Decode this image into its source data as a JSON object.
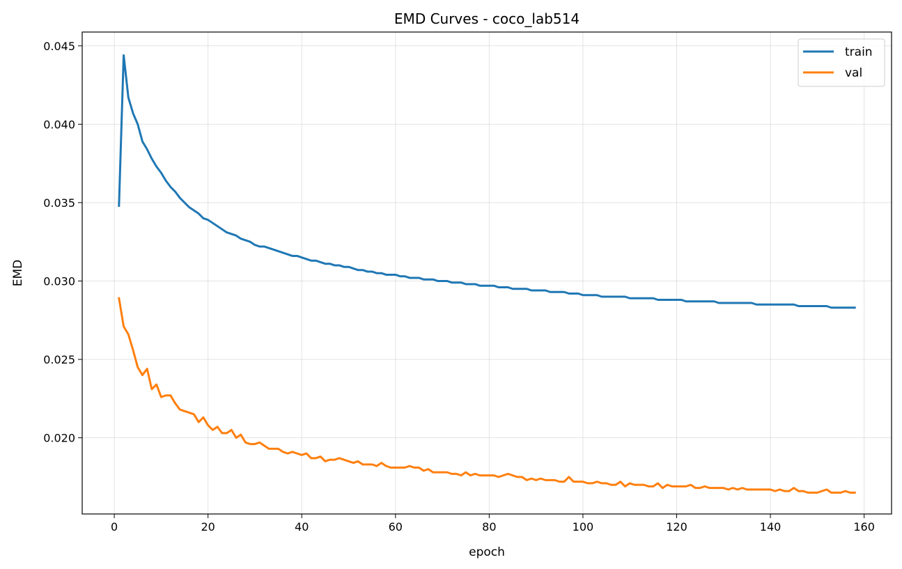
{
  "chart_data": {
    "type": "line",
    "title": "EMD Curves - coco_lab514",
    "xlabel": "epoch",
    "ylabel": "EMD",
    "xlim": [
      -6.85,
      165.85
    ],
    "ylim": [
      0.01514,
      0.04588
    ],
    "xticks": [
      0,
      20,
      40,
      60,
      80,
      100,
      120,
      140,
      160
    ],
    "xtick_labels": [
      "0",
      "20",
      "40",
      "60",
      "80",
      "100",
      "120",
      "140",
      "160"
    ],
    "yticks": [
      0.02,
      0.025,
      0.03,
      0.035,
      0.04,
      0.045
    ],
    "ytick_labels": [
      "0.020",
      "0.025",
      "0.030",
      "0.035",
      "0.040",
      "0.045"
    ],
    "grid": true,
    "legend_position": "top-right",
    "series": [
      {
        "name": "train",
        "color": "#1f77b4",
        "x": [
          1,
          2,
          3,
          4,
          5,
          6,
          7,
          8,
          9,
          10,
          11,
          12,
          13,
          14,
          15,
          16,
          17,
          18,
          19,
          20,
          21,
          22,
          23,
          24,
          25,
          26,
          27,
          28,
          29,
          30,
          31,
          32,
          33,
          34,
          35,
          36,
          37,
          38,
          39,
          40,
          41,
          42,
          43,
          44,
          45,
          46,
          47,
          48,
          49,
          50,
          51,
          52,
          53,
          54,
          55,
          56,
          57,
          58,
          59,
          60,
          61,
          62,
          63,
          64,
          65,
          66,
          67,
          68,
          69,
          70,
          71,
          72,
          73,
          74,
          75,
          76,
          77,
          78,
          79,
          80,
          81,
          82,
          83,
          84,
          85,
          86,
          87,
          88,
          89,
          90,
          91,
          92,
          93,
          94,
          95,
          96,
          97,
          98,
          99,
          100,
          101,
          102,
          103,
          104,
          105,
          106,
          107,
          108,
          109,
          110,
          111,
          112,
          113,
          114,
          115,
          116,
          117,
          118,
          119,
          120,
          121,
          122,
          123,
          124,
          125,
          126,
          127,
          128,
          129,
          130,
          131,
          132,
          133,
          134,
          135,
          136,
          137,
          138,
          139,
          140,
          141,
          142,
          143,
          144,
          145,
          146,
          147,
          148,
          149,
          150,
          151,
          152,
          153,
          154,
          155,
          156,
          157,
          158
        ],
        "values": [
          0.0348,
          0.0444,
          0.0417,
          0.0407,
          0.04,
          0.0389,
          0.0384,
          0.0378,
          0.0373,
          0.0369,
          0.0364,
          0.036,
          0.0357,
          0.0353,
          0.035,
          0.0347,
          0.0345,
          0.0343,
          0.034,
          0.0339,
          0.0337,
          0.0335,
          0.0333,
          0.0331,
          0.033,
          0.0329,
          0.0327,
          0.0326,
          0.0325,
          0.0323,
          0.0322,
          0.0322,
          0.0321,
          0.032,
          0.0319,
          0.0318,
          0.0317,
          0.0316,
          0.0316,
          0.0315,
          0.0314,
          0.0313,
          0.0313,
          0.0312,
          0.0311,
          0.0311,
          0.031,
          0.031,
          0.0309,
          0.0309,
          0.0308,
          0.0307,
          0.0307,
          0.0306,
          0.0306,
          0.0305,
          0.0305,
          0.0304,
          0.0304,
          0.0304,
          0.0303,
          0.0303,
          0.0302,
          0.0302,
          0.0302,
          0.0301,
          0.0301,
          0.0301,
          0.03,
          0.03,
          0.03,
          0.0299,
          0.0299,
          0.0299,
          0.0298,
          0.0298,
          0.0298,
          0.0297,
          0.0297,
          0.0297,
          0.0297,
          0.0296,
          0.0296,
          0.0296,
          0.0295,
          0.0295,
          0.0295,
          0.0295,
          0.0294,
          0.0294,
          0.0294,
          0.0294,
          0.0293,
          0.0293,
          0.0293,
          0.0293,
          0.0292,
          0.0292,
          0.0292,
          0.0291,
          0.0291,
          0.0291,
          0.0291,
          0.029,
          0.029,
          0.029,
          0.029,
          0.029,
          0.029,
          0.0289,
          0.0289,
          0.0289,
          0.0289,
          0.0289,
          0.0289,
          0.0288,
          0.0288,
          0.0288,
          0.0288,
          0.0288,
          0.0288,
          0.0287,
          0.0287,
          0.0287,
          0.0287,
          0.0287,
          0.0287,
          0.0287,
          0.0286,
          0.0286,
          0.0286,
          0.0286,
          0.0286,
          0.0286,
          0.0286,
          0.0286,
          0.0285,
          0.0285,
          0.0285,
          0.0285,
          0.0285,
          0.0285,
          0.0285,
          0.0285,
          0.0285,
          0.0284,
          0.0284,
          0.0284,
          0.0284,
          0.0284,
          0.0284,
          0.0284,
          0.0283,
          0.0283,
          0.0283,
          0.0283,
          0.0283,
          0.0283
        ]
      },
      {
        "name": "val",
        "color": "#ff7f0e",
        "x": [
          1,
          2,
          3,
          4,
          5,
          6,
          7,
          8,
          9,
          10,
          11,
          12,
          13,
          14,
          15,
          16,
          17,
          18,
          19,
          20,
          21,
          22,
          23,
          24,
          25,
          26,
          27,
          28,
          29,
          30,
          31,
          32,
          33,
          34,
          35,
          36,
          37,
          38,
          39,
          40,
          41,
          42,
          43,
          44,
          45,
          46,
          47,
          48,
          49,
          50,
          51,
          52,
          53,
          54,
          55,
          56,
          57,
          58,
          59,
          60,
          61,
          62,
          63,
          64,
          65,
          66,
          67,
          68,
          69,
          70,
          71,
          72,
          73,
          74,
          75,
          76,
          77,
          78,
          79,
          80,
          81,
          82,
          83,
          84,
          85,
          86,
          87,
          88,
          89,
          90,
          91,
          92,
          93,
          94,
          95,
          96,
          97,
          98,
          99,
          100,
          101,
          102,
          103,
          104,
          105,
          106,
          107,
          108,
          109,
          110,
          111,
          112,
          113,
          114,
          115,
          116,
          117,
          118,
          119,
          120,
          121,
          122,
          123,
          124,
          125,
          126,
          127,
          128,
          129,
          130,
          131,
          132,
          133,
          134,
          135,
          136,
          137,
          138,
          139,
          140,
          141,
          142,
          143,
          144,
          145,
          146,
          147,
          148,
          149,
          150,
          151,
          152,
          153,
          154,
          155,
          156,
          157,
          158
        ],
        "values": [
          0.0289,
          0.0271,
          0.0266,
          0.0256,
          0.0245,
          0.024,
          0.0244,
          0.0231,
          0.0234,
          0.0226,
          0.0227,
          0.0227,
          0.0222,
          0.0218,
          0.0217,
          0.0216,
          0.0215,
          0.021,
          0.0213,
          0.0208,
          0.0205,
          0.0207,
          0.0203,
          0.0203,
          0.0205,
          0.02,
          0.0202,
          0.0197,
          0.0196,
          0.0196,
          0.0197,
          0.0195,
          0.0193,
          0.0193,
          0.0193,
          0.0191,
          0.019,
          0.0191,
          0.019,
          0.0189,
          0.019,
          0.0187,
          0.0187,
          0.0188,
          0.0185,
          0.0186,
          0.0186,
          0.0187,
          0.0186,
          0.0185,
          0.0184,
          0.0185,
          0.0183,
          0.0183,
          0.0183,
          0.0182,
          0.0184,
          0.0182,
          0.0181,
          0.0181,
          0.0181,
          0.0181,
          0.0182,
          0.0181,
          0.0181,
          0.0179,
          0.018,
          0.0178,
          0.0178,
          0.0178,
          0.0178,
          0.0177,
          0.0177,
          0.0176,
          0.0178,
          0.0176,
          0.0177,
          0.0176,
          0.0176,
          0.0176,
          0.0176,
          0.0175,
          0.0176,
          0.0177,
          0.0176,
          0.0175,
          0.0175,
          0.0173,
          0.0174,
          0.0173,
          0.0174,
          0.0173,
          0.0173,
          0.0173,
          0.0172,
          0.0172,
          0.0175,
          0.0172,
          0.0172,
          0.0172,
          0.0171,
          0.0171,
          0.0172,
          0.0171,
          0.0171,
          0.017,
          0.017,
          0.0172,
          0.0169,
          0.0171,
          0.017,
          0.017,
          0.017,
          0.0169,
          0.0169,
          0.0171,
          0.0168,
          0.017,
          0.0169,
          0.0169,
          0.0169,
          0.0169,
          0.017,
          0.0168,
          0.0168,
          0.0169,
          0.0168,
          0.0168,
          0.0168,
          0.0168,
          0.0167,
          0.0168,
          0.0167,
          0.0168,
          0.0167,
          0.0167,
          0.0167,
          0.0167,
          0.0167,
          0.0167,
          0.0166,
          0.0167,
          0.0166,
          0.0166,
          0.0168,
          0.0166,
          0.0166,
          0.0165,
          0.0165,
          0.0165,
          0.0166,
          0.0167,
          0.0165,
          0.0165,
          0.0165,
          0.0166,
          0.0165,
          0.0165
        ]
      }
    ]
  }
}
